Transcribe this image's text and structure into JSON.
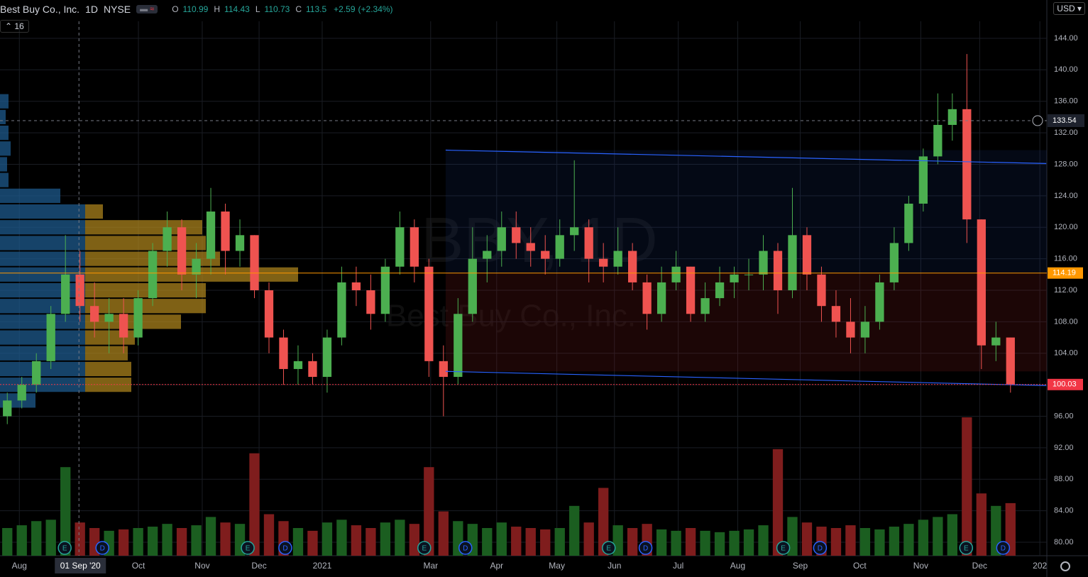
{
  "header": {
    "symbol": "Best Buy Co., Inc.",
    "interval": "1D",
    "exchange": "NYSE",
    "ohlc": [
      {
        "key": "O",
        "value": 110.99
      },
      {
        "key": "H",
        "value": 114.43
      },
      {
        "key": "L",
        "value": 110.73
      },
      {
        "key": "C",
        "value": 113.5
      }
    ],
    "change": "+2.59",
    "change_pct": "(+2.34%)",
    "indicator_count": 16,
    "currency": "USD"
  },
  "chart_data": {
    "type": "candlestick",
    "watermark": "BBY, 1D",
    "watermark_sub": "Best Buy Co., Inc.",
    "up_color": "#4caf50",
    "down_color": "#ef5350",
    "open": [
      96,
      98,
      100,
      103,
      109,
      114,
      110,
      108,
      109,
      106,
      111,
      117,
      120,
      114,
      116,
      122,
      117,
      119,
      112,
      106,
      102,
      103,
      101,
      106,
      113,
      112,
      109,
      115,
      120,
      115,
      103,
      101,
      109,
      116,
      117,
      120,
      118,
      117,
      116,
      119,
      120,
      116,
      115,
      117,
      113,
      109,
      113,
      115,
      109,
      111,
      113,
      114,
      114,
      117,
      112,
      119,
      114,
      110,
      108,
      106,
      108,
      113,
      118,
      123,
      129,
      133,
      135,
      121,
      105,
      106
    ],
    "high": [
      99,
      101,
      104,
      110,
      119,
      117,
      113,
      111,
      111,
      112,
      118,
      122,
      121,
      118,
      125,
      123,
      121,
      119,
      113,
      107,
      105,
      104,
      107,
      115,
      115,
      114,
      116,
      122,
      121,
      116,
      105,
      111,
      120,
      119,
      122,
      122,
      120,
      119,
      121,
      128.5,
      121,
      118,
      120,
      118,
      114,
      115,
      117,
      115,
      113,
      115,
      115,
      116,
      119,
      118,
      125,
      120,
      115,
      112,
      111,
      110,
      114,
      120,
      124,
      130,
      137,
      137,
      142,
      121,
      108,
      106
    ],
    "low": [
      95,
      97,
      99,
      102,
      108,
      108,
      106,
      104,
      104,
      105,
      110,
      115,
      112,
      111,
      114,
      114,
      115,
      111,
      104,
      100,
      100,
      100,
      99,
      105,
      110,
      107,
      108,
      114,
      113,
      101,
      96,
      100,
      108,
      113,
      115,
      116,
      115,
      114,
      115,
      117,
      113,
      113,
      114,
      112,
      107,
      108,
      112,
      108,
      108,
      110,
      111,
      112,
      112,
      109,
      111,
      112,
      108,
      106,
      104,
      104,
      107,
      112,
      117,
      122,
      128,
      131,
      118,
      102,
      103,
      99
    ],
    "close": [
      98,
      100,
      103,
      109,
      114,
      110,
      108,
      109,
      106,
      111,
      117,
      120,
      114,
      116,
      122,
      117,
      119,
      112,
      106,
      102,
      103,
      101,
      106,
      113,
      112,
      109,
      115,
      120,
      115,
      103,
      101,
      109,
      116,
      117,
      120,
      118,
      117,
      116,
      119,
      120,
      116,
      115,
      117,
      113,
      109,
      113,
      115,
      109,
      111,
      113,
      114,
      114,
      117,
      112,
      119,
      114,
      110,
      108,
      106,
      108,
      113,
      118,
      123,
      129,
      133,
      135,
      121,
      105,
      106,
      100
    ],
    "volume": [
      2.0,
      2.2,
      2.5,
      2.6,
      6.4,
      2.4,
      2.0,
      1.8,
      1.9,
      2.0,
      2.1,
      2.3,
      2.0,
      2.2,
      2.8,
      2.4,
      2.3,
      7.4,
      3.0,
      2.5,
      2.0,
      1.8,
      2.4,
      2.6,
      2.2,
      2.0,
      2.4,
      2.6,
      2.3,
      6.4,
      3.2,
      2.5,
      2.3,
      2.0,
      2.4,
      2.1,
      2.0,
      1.9,
      2.0,
      3.6,
      2.4,
      4.9,
      2.2,
      2.0,
      2.3,
      1.9,
      1.8,
      2.0,
      1.8,
      1.7,
      1.8,
      1.9,
      2.2,
      7.7,
      2.8,
      2.4,
      2.1,
      2.0,
      2.2,
      2.0,
      1.9,
      2.1,
      2.3,
      2.6,
      2.8,
      3.0,
      10.0,
      4.5,
      3.6,
      3.8
    ],
    "xlim": [
      -0.5,
      71.5
    ],
    "ylim": [
      78.29,
      146.16
    ],
    "xticks": [
      {
        "value": 0.83,
        "label": "Aug"
      },
      {
        "value": 9.02,
        "label": "Oct"
      },
      {
        "value": 13.41,
        "label": "Nov"
      },
      {
        "value": 17.32,
        "label": "Dec"
      },
      {
        "value": 21.66,
        "label": "2021"
      },
      {
        "value": 29.12,
        "label": "Mar"
      },
      {
        "value": 33.66,
        "label": "Apr"
      },
      {
        "value": 37.8,
        "label": "May"
      },
      {
        "value": 41.76,
        "label": "Jun"
      },
      {
        "value": 46.15,
        "label": "Jul"
      },
      {
        "value": 50.24,
        "label": "Aug"
      },
      {
        "value": 54.54,
        "label": "Sep"
      },
      {
        "value": 58.63,
        "label": "Oct"
      },
      {
        "value": 62.83,
        "label": "Nov"
      },
      {
        "value": 66.88,
        "label": "Dec"
      },
      {
        "value": 71.02,
        "label": "202"
      }
    ],
    "yticks": [
      {
        "value": 80,
        "label": "80.00"
      },
      {
        "value": 84,
        "label": "84.00"
      },
      {
        "value": 88,
        "label": "88.00"
      },
      {
        "value": 92,
        "label": "92.00"
      },
      {
        "value": 96,
        "label": "96.00"
      },
      {
        "value": 100,
        "label": "100.00"
      },
      {
        "value": 104,
        "label": "104.00"
      },
      {
        "value": 108,
        "label": "108.00"
      },
      {
        "value": 112,
        "label": "112.00"
      },
      {
        "value": 116,
        "label": "116.00"
      },
      {
        "value": 120,
        "label": "120.00"
      },
      {
        "value": 124,
        "label": "124.00"
      },
      {
        "value": 128,
        "label": "128.00"
      },
      {
        "value": 132,
        "label": "132.00"
      },
      {
        "value": 136,
        "label": "136.00"
      },
      {
        "value": 140,
        "label": "140.00"
      },
      {
        "value": 144,
        "label": "144.00"
      }
    ],
    "grid": true,
    "channel": [
      {
        "x": [
          30.15,
          71.46
        ],
        "y": [
          129.8,
          128.1
        ],
        "color": "#2962ff"
      },
      {
        "x": [
          30.15,
          71.46
        ],
        "y": [
          101.7,
          99.9
        ],
        "color": "#2962ff"
      }
    ],
    "price_lines": [
      {
        "value": 114.19,
        "color": "#ff9800"
      },
      {
        "value": 100.03,
        "color": "#f23645"
      }
    ],
    "crosshair": {
      "x": 4.93,
      "x_label": "01 Sep '20",
      "price": 133.54
    },
    "volume_profile": {
      "levels": [
        98,
        100,
        102,
        104,
        106,
        108,
        110,
        112,
        114,
        116,
        118,
        120,
        122,
        124,
        126,
        128,
        130,
        132,
        134,
        136
      ],
      "values": [
        50,
        185,
        185,
        180,
        190,
        255,
        290,
        290,
        420,
        310,
        290,
        285,
        145,
        85,
        12,
        10,
        15,
        12,
        8,
        12
      ]
    },
    "earnings": {
      "label": "E",
      "x": [
        3.95,
        16.54,
        28.68,
        41.37,
        53.37,
        65.95
      ]
    },
    "dividends": {
      "label": "D",
      "x": [
        6.54,
        19.12,
        31.51,
        43.9,
        55.9,
        68.49
      ]
    }
  }
}
